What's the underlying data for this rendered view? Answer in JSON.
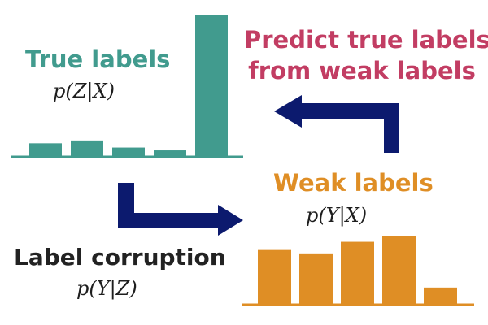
{
  "colors": {
    "true_labels": "#419b8e",
    "weak_labels": "#df8e25",
    "predict": "#c23d63",
    "arrow": "#0c1a6e",
    "corruption_text": "#222222"
  },
  "true_labels": {
    "title": "True labels",
    "math": "p(Z|X)",
    "distribution": [
      0.09,
      0.11,
      0.06,
      0.04,
      1.0
    ]
  },
  "weak_labels": {
    "title": "Weak labels",
    "math": "p(Y|X)",
    "distribution": [
      0.79,
      0.74,
      0.91,
      1.0,
      0.24
    ]
  },
  "corruption": {
    "title": "Label corruption",
    "math": "p(Y|Z)"
  },
  "prediction": {
    "line1": "Predict true labels",
    "line2": "from weak labels"
  },
  "arrows": {
    "corruption_arrow": "arrow-right-icon",
    "prediction_arrow": "arrow-left-icon"
  }
}
